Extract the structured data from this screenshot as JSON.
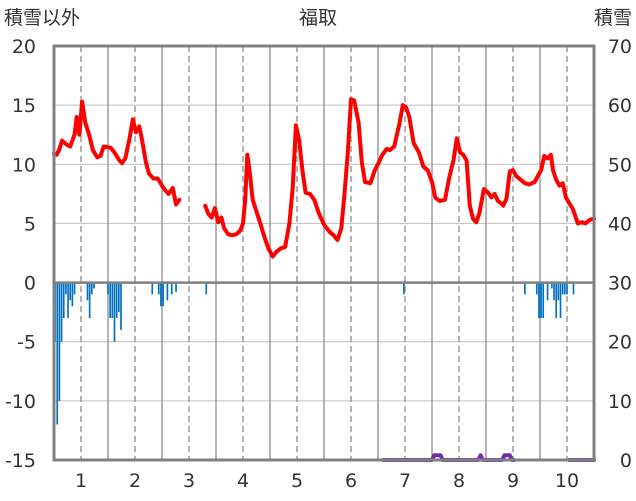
{
  "chart_data": {
    "type": "line",
    "title": "福取",
    "ylabel_left": "積雪以外",
    "ylabel_right": "積雪",
    "left_axis": {
      "min": -15,
      "max": 20,
      "ticks": [
        -15,
        -10,
        -5,
        0,
        5,
        10,
        15,
        20
      ]
    },
    "right_axis": {
      "min": 0,
      "max": 70,
      "ticks": [
        0,
        10,
        20,
        30,
        40,
        50,
        60,
        70
      ]
    },
    "x_axis": {
      "min": 0.5,
      "max": 10.5,
      "ticks": [
        1,
        2,
        3,
        4,
        5,
        6,
        7,
        8,
        9,
        10
      ]
    },
    "grid": true,
    "series": [
      {
        "kind": "line",
        "axis": "left",
        "color": "#ff0000",
        "segments": [
          [
            [
              0.5,
              10.9
            ],
            [
              0.55,
              10.8
            ],
            [
              0.6,
              11.3
            ],
            [
              0.65,
              12.0
            ],
            [
              0.72,
              11.7
            ],
            [
              0.8,
              11.5
            ],
            [
              0.88,
              12.5
            ],
            [
              0.92,
              14.0
            ],
            [
              0.97,
              12.5
            ],
            [
              1.02,
              15.3
            ],
            [
              1.08,
              13.5
            ],
            [
              1.15,
              12.5
            ],
            [
              1.22,
              11.2
            ],
            [
              1.3,
              10.6
            ],
            [
              1.36,
              10.7
            ],
            [
              1.42,
              11.5
            ],
            [
              1.55,
              11.4
            ],
            [
              1.62,
              11.0
            ],
            [
              1.7,
              10.4
            ],
            [
              1.76,
              10.1
            ],
            [
              1.82,
              10.5
            ],
            [
              1.9,
              12.2
            ],
            [
              1.96,
              13.8
            ],
            [
              2.02,
              12.7
            ],
            [
              2.08,
              13.2
            ],
            [
              2.14,
              11.8
            ],
            [
              2.2,
              10.2
            ],
            [
              2.26,
              9.2
            ],
            [
              2.34,
              8.8
            ],
            [
              2.42,
              8.8
            ],
            [
              2.5,
              8.2
            ],
            [
              2.56,
              7.8
            ],
            [
              2.62,
              7.5
            ],
            [
              2.7,
              8.0
            ],
            [
              2.76,
              6.6
            ],
            [
              2.82,
              7.0
            ]
          ],
          [
            [
              3.3,
              6.5
            ],
            [
              3.36,
              5.8
            ],
            [
              3.42,
              5.5
            ],
            [
              3.48,
              6.3
            ],
            [
              3.54,
              5.1
            ],
            [
              3.6,
              5.5
            ],
            [
              3.65,
              4.6
            ],
            [
              3.72,
              4.1
            ],
            [
              3.8,
              4.0
            ],
            [
              3.88,
              4.1
            ],
            [
              3.95,
              4.4
            ],
            [
              4.0,
              5.0
            ],
            [
              4.04,
              7.0
            ],
            [
              4.08,
              10.8
            ],
            [
              4.12,
              9.5
            ],
            [
              4.18,
              7.0
            ],
            [
              4.25,
              6.0
            ],
            [
              4.32,
              5.0
            ],
            [
              4.4,
              3.8
            ],
            [
              4.47,
              2.9
            ],
            [
              4.55,
              2.2
            ],
            [
              4.62,
              2.6
            ],
            [
              4.7,
              2.9
            ],
            [
              4.78,
              3.0
            ],
            [
              4.86,
              5.0
            ],
            [
              4.92,
              8.0
            ],
            [
              4.98,
              13.3
            ],
            [
              5.04,
              12.0
            ],
            [
              5.1,
              9.5
            ],
            [
              5.16,
              7.6
            ],
            [
              5.24,
              7.5
            ],
            [
              5.32,
              7.0
            ],
            [
              5.4,
              5.9
            ],
            [
              5.5,
              4.9
            ],
            [
              5.6,
              4.3
            ],
            [
              5.68,
              4.0
            ],
            [
              5.75,
              3.6
            ],
            [
              5.82,
              4.6
            ],
            [
              5.88,
              7.5
            ],
            [
              5.94,
              11.0
            ],
            [
              6.0,
              15.5
            ],
            [
              6.06,
              15.4
            ],
            [
              6.14,
              13.5
            ],
            [
              6.2,
              10.2
            ],
            [
              6.26,
              8.5
            ],
            [
              6.36,
              8.4
            ],
            [
              6.44,
              9.5
            ],
            [
              6.52,
              10.2
            ],
            [
              6.58,
              10.8
            ],
            [
              6.66,
              11.3
            ],
            [
              6.72,
              11.2
            ],
            [
              6.8,
              11.5
            ],
            [
              6.9,
              13.5
            ],
            [
              6.96,
              15.0
            ],
            [
              7.02,
              14.8
            ],
            [
              7.08,
              14.0
            ],
            [
              7.16,
              11.8
            ],
            [
              7.26,
              11.0
            ],
            [
              7.34,
              9.8
            ],
            [
              7.42,
              9.5
            ],
            [
              7.5,
              8.5
            ],
            [
              7.56,
              7.2
            ],
            [
              7.64,
              6.9
            ],
            [
              7.74,
              7.0
            ],
            [
              7.82,
              8.9
            ],
            [
              7.9,
              10.4
            ],
            [
              7.96,
              12.2
            ],
            [
              8.02,
              11.0
            ],
            [
              8.08,
              10.8
            ],
            [
              8.14,
              10.3
            ],
            [
              8.2,
              6.5
            ],
            [
              8.26,
              5.4
            ],
            [
              8.32,
              5.1
            ],
            [
              8.38,
              5.9
            ],
            [
              8.46,
              7.9
            ],
            [
              8.54,
              7.6
            ],
            [
              8.6,
              7.2
            ],
            [
              8.66,
              7.5
            ],
            [
              8.72,
              6.9
            ],
            [
              8.78,
              6.7
            ],
            [
              8.82,
              6.5
            ],
            [
              8.88,
              7.1
            ],
            [
              8.94,
              9.4
            ],
            [
              9.0,
              9.5
            ],
            [
              9.06,
              9.0
            ],
            [
              9.14,
              8.7
            ],
            [
              9.22,
              8.4
            ],
            [
              9.3,
              8.3
            ],
            [
              9.4,
              8.5
            ],
            [
              9.46,
              9.0
            ],
            [
              9.52,
              9.5
            ],
            [
              9.58,
              10.7
            ],
            [
              9.64,
              10.5
            ],
            [
              9.7,
              10.8
            ],
            [
              9.74,
              9.5
            ],
            [
              9.8,
              8.7
            ],
            [
              9.86,
              8.2
            ],
            [
              9.92,
              8.4
            ],
            [
              9.98,
              7.2
            ],
            [
              10.04,
              6.7
            ],
            [
              10.1,
              6.3
            ],
            [
              10.14,
              5.8
            ],
            [
              10.2,
              5.0
            ],
            [
              10.28,
              5.1
            ],
            [
              10.34,
              5.0
            ],
            [
              10.42,
              5.3
            ],
            [
              10.5,
              5.4
            ]
          ]
        ]
      },
      {
        "kind": "bar",
        "axis": "left",
        "color": "#0070c0",
        "bar_width": 0.04,
        "x": [
          0.52,
          0.56,
          0.6,
          0.64,
          0.68,
          0.72,
          0.76,
          0.8,
          0.84,
          0.88,
          1.12,
          1.16,
          1.2,
          1.24,
          1.5,
          1.54,
          1.58,
          1.62,
          1.66,
          1.7,
          1.74,
          2.32,
          2.44,
          2.48,
          2.52,
          2.6,
          2.68,
          2.76,
          3.32,
          6.98,
          9.22,
          9.44,
          9.48,
          9.52,
          9.56,
          9.64,
          9.72,
          9.76,
          9.8,
          9.84,
          9.88,
          9.92,
          9.96,
          10.0,
          10.12
        ],
        "values": [
          -5.0,
          -12.0,
          -10.0,
          -5.0,
          -3.0,
          -1.0,
          -3.0,
          -1.5,
          -2.0,
          -1.0,
          -1.5,
          -3.0,
          -1.0,
          -0.5,
          -1.0,
          -3.0,
          -3.0,
          -5.0,
          -3.0,
          -2.5,
          -4.0,
          -1.0,
          -1.0,
          -2.0,
          -2.0,
          -1.5,
          -1.0,
          -0.8,
          -1.0,
          -1.0,
          -1.0,
          -1.0,
          -3.0,
          -3.0,
          -3.0,
          -1.5,
          -0.5,
          -1.5,
          -3.0,
          -1.5,
          -3.0,
          -1.0,
          -1.0,
          -1.0,
          -1.0
        ]
      },
      {
        "kind": "line",
        "axis": "right",
        "color": "#7030a0",
        "segments": [
          [
            [
              6.6,
              0
            ],
            [
              7.5,
              0
            ],
            [
              7.54,
              0.8
            ],
            [
              7.66,
              0.8
            ],
            [
              7.7,
              0
            ],
            [
              8.36,
              0
            ],
            [
              8.4,
              0.8
            ],
            [
              8.44,
              0
            ],
            [
              8.8,
              0
            ],
            [
              8.84,
              0.8
            ],
            [
              8.94,
              0.8
            ],
            [
              8.98,
              0
            ],
            [
              9.02,
              0
            ]
          ],
          [
            [
              10.04,
              0
            ],
            [
              10.5,
              0
            ]
          ]
        ]
      }
    ]
  }
}
